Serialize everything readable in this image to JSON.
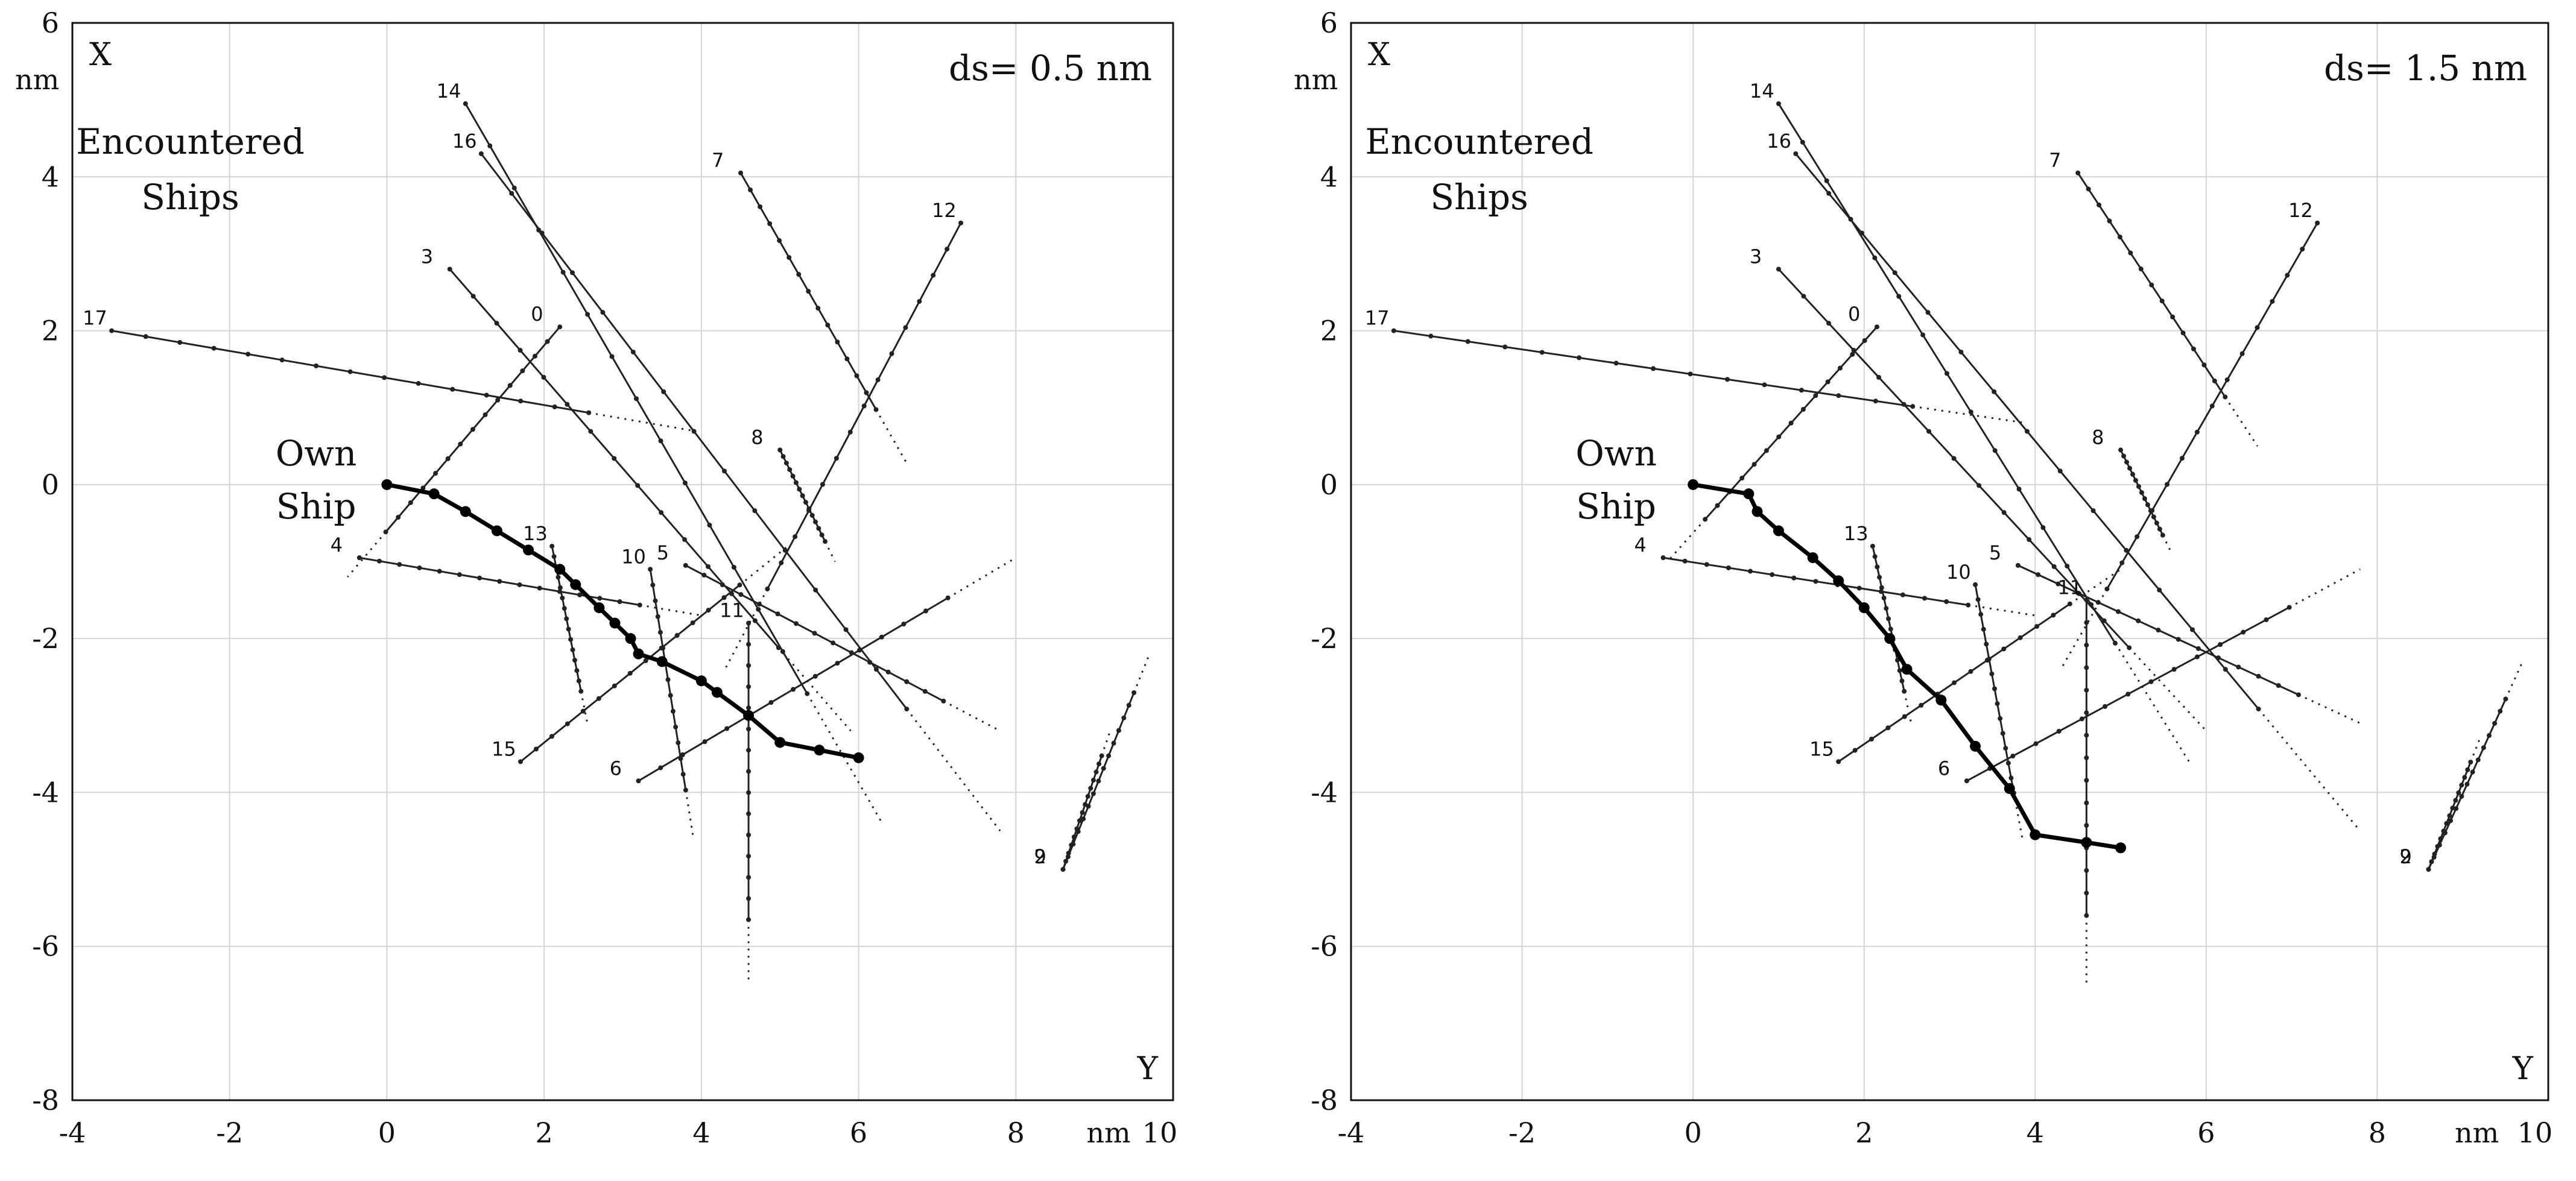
{
  "chart_data": [
    {
      "type": "line",
      "annotation": "ds= 0.5 nm",
      "xlim": [
        -4,
        10
      ],
      "ylim": [
        -8,
        6
      ],
      "xticks": [
        "-4",
        "-2",
        "0",
        "2",
        "4",
        "6",
        "8",
        "10"
      ],
      "yticks": [
        "-8",
        "-6",
        "-4",
        "-2",
        "0",
        "2",
        "4",
        "6"
      ],
      "xlabel_unit": "nm",
      "xlabel": "Y",
      "ylabel": "X",
      "ylabel_unit": "nm",
      "group_label": "Encountered Ships",
      "own_label": "Own Ship",
      "own_ship": [
        [
          0,
          0
        ],
        [
          0.6,
          -0.12
        ],
        [
          1.0,
          -0.35
        ],
        [
          1.4,
          -0.6
        ],
        [
          1.8,
          -0.85
        ],
        [
          2.2,
          -1.1
        ],
        [
          2.4,
          -1.3
        ],
        [
          2.7,
          -1.6
        ],
        [
          2.9,
          -1.8
        ],
        [
          3.1,
          -2.0
        ],
        [
          3.2,
          -2.2
        ],
        [
          3.5,
          -2.3
        ],
        [
          4.0,
          -2.55
        ],
        [
          4.2,
          -2.7
        ],
        [
          4.6,
          -3.0
        ],
        [
          5.0,
          -3.35
        ],
        [
          5.5,
          -3.45
        ],
        [
          6.0,
          -3.55
        ]
      ],
      "ships": [
        {
          "id": "0",
          "label": "0",
          "p1": [
            2.2,
            2.05
          ],
          "p2": [
            -0.5,
            -1.2
          ]
        },
        {
          "id": "2",
          "label": "2",
          "p1": [
            8.6,
            -5.0
          ],
          "p2": [
            9.7,
            -2.2
          ]
        },
        {
          "id": "3",
          "label": "3",
          "p1": [
            0.8,
            2.8
          ],
          "p2": [
            5.9,
            -3.2
          ]
        },
        {
          "id": "4",
          "label": "4",
          "p1": [
            -0.35,
            -0.95
          ],
          "p2": [
            4.0,
            -1.7
          ]
        },
        {
          "id": "5",
          "label": "5",
          "p1": [
            3.8,
            -1.05
          ],
          "p2": [
            7.8,
            -3.2
          ]
        },
        {
          "id": "6",
          "label": "6",
          "p1": [
            3.2,
            -3.85
          ],
          "p2": [
            8.0,
            -0.95
          ]
        },
        {
          "id": "7",
          "label": "7",
          "p1": [
            4.5,
            4.05
          ],
          "p2": [
            6.6,
            0.3
          ]
        },
        {
          "id": "8",
          "label": "8",
          "p1": [
            5.0,
            0.45
          ],
          "p2": [
            5.7,
            -1.0
          ]
        },
        {
          "id": "9",
          "label": "9",
          "p1": [
            8.6,
            -5.0
          ],
          "p2": [
            9.2,
            -3.2
          ]
        },
        {
          "id": "10",
          "label": "10",
          "p1": [
            3.35,
            -1.1
          ],
          "p2": [
            3.9,
            -4.6
          ]
        },
        {
          "id": "11",
          "label": "11",
          "p1": [
            4.6,
            -1.8
          ],
          "p2": [
            4.6,
            -6.5
          ]
        },
        {
          "id": "12",
          "label": "12",
          "p1": [
            7.3,
            3.4
          ],
          "p2": [
            4.3,
            -2.4
          ]
        },
        {
          "id": "13",
          "label": "13",
          "p1": [
            2.1,
            -0.8
          ],
          "p2": [
            2.55,
            -3.1
          ]
        },
        {
          "id": "14",
          "label": "14",
          "p1": [
            1.0,
            4.95
          ],
          "p2": [
            6.3,
            -4.4
          ]
        },
        {
          "id": "15",
          "label": "15",
          "p1": [
            1.7,
            -3.6
          ],
          "p2": [
            5.1,
            -0.8
          ]
        },
        {
          "id": "16",
          "label": "16",
          "p1": [
            1.2,
            4.3
          ],
          "p2": [
            7.8,
            -4.5
          ]
        },
        {
          "id": "17",
          "label": "17",
          "p1": [
            -3.5,
            2.0
          ],
          "p2": [
            3.9,
            0.7
          ]
        }
      ]
    },
    {
      "type": "line",
      "annotation": "ds= 1.5 nm",
      "xlim": [
        -4,
        10
      ],
      "ylim": [
        -8,
        6
      ],
      "xticks": [
        "-4",
        "-2",
        "0",
        "2",
        "4",
        "6",
        "8",
        "10"
      ],
      "yticks": [
        "-8",
        "-6",
        "-4",
        "-2",
        "0",
        "2",
        "4",
        "6"
      ],
      "xlabel_unit": "nm",
      "xlabel": "Y",
      "ylabel": "X",
      "ylabel_unit": "nm",
      "group_label": "Encountered Ships",
      "own_label": "Own Ship",
      "own_ship": [
        [
          0,
          0
        ],
        [
          0.65,
          -0.12
        ],
        [
          0.75,
          -0.35
        ],
        [
          1.0,
          -0.6
        ],
        [
          1.4,
          -0.95
        ],
        [
          1.7,
          -1.25
        ],
        [
          2.0,
          -1.6
        ],
        [
          2.3,
          -2.0
        ],
        [
          2.5,
          -2.4
        ],
        [
          2.9,
          -2.8
        ],
        [
          3.3,
          -3.4
        ],
        [
          3.7,
          -3.95
        ],
        [
          4.0,
          -4.55
        ],
        [
          4.6,
          -4.65
        ],
        [
          5.0,
          -4.72
        ]
      ],
      "ships": [
        {
          "id": "0",
          "label": "0",
          "p1": [
            2.15,
            2.05
          ],
          "p2": [
            -0.3,
            -1.0
          ]
        },
        {
          "id": "2",
          "label": "2",
          "p1": [
            8.6,
            -5.0
          ],
          "p2": [
            9.7,
            -2.3
          ]
        },
        {
          "id": "3",
          "label": "3",
          "p1": [
            1.0,
            2.8
          ],
          "p2": [
            6.0,
            -3.2
          ]
        },
        {
          "id": "4",
          "label": "4",
          "p1": [
            -0.35,
            -0.95
          ],
          "p2": [
            4.0,
            -1.7
          ]
        },
        {
          "id": "5",
          "label": "5",
          "p1": [
            3.8,
            -1.05
          ],
          "p2": [
            7.8,
            -3.1
          ]
        },
        {
          "id": "6",
          "label": "6",
          "p1": [
            3.2,
            -3.85
          ],
          "p2": [
            7.8,
            -1.1
          ]
        },
        {
          "id": "7",
          "label": "7",
          "p1": [
            4.5,
            4.05
          ],
          "p2": [
            6.6,
            0.5
          ]
        },
        {
          "id": "8",
          "label": "8",
          "p1": [
            5.0,
            0.45
          ],
          "p2": [
            5.6,
            -0.9
          ]
        },
        {
          "id": "9",
          "label": "9",
          "p1": [
            8.6,
            -5.0
          ],
          "p2": [
            9.2,
            -3.3
          ]
        },
        {
          "id": "10",
          "label": "10",
          "p1": [
            3.3,
            -1.3
          ],
          "p2": [
            3.85,
            -4.6
          ]
        },
        {
          "id": "11",
          "label": "11",
          "p1": [
            4.6,
            -1.5
          ],
          "p2": [
            4.6,
            -6.5
          ]
        },
        {
          "id": "12",
          "label": "12",
          "p1": [
            7.3,
            3.4
          ],
          "p2": [
            4.3,
            -2.4
          ]
        },
        {
          "id": "13",
          "label": "13",
          "p1": [
            2.1,
            -0.8
          ],
          "p2": [
            2.55,
            -3.1
          ]
        },
        {
          "id": "14",
          "label": "14",
          "p1": [
            1.0,
            4.95
          ],
          "p2": [
            5.8,
            -3.6
          ]
        },
        {
          "id": "15",
          "label": "15",
          "p1": [
            1.7,
            -3.6
          ],
          "p2": [
            5.0,
            -1.1
          ]
        },
        {
          "id": "16",
          "label": "16",
          "p1": [
            1.2,
            4.3
          ],
          "p2": [
            7.8,
            -4.5
          ]
        },
        {
          "id": "17",
          "label": "17",
          "p1": [
            -3.5,
            2.0
          ],
          "p2": [
            3.9,
            0.8
          ]
        }
      ]
    }
  ]
}
